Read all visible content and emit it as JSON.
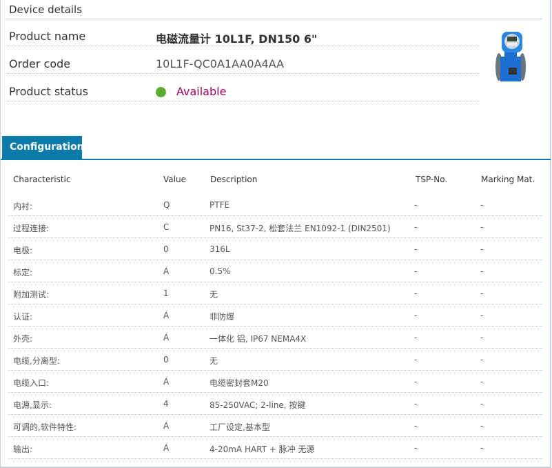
{
  "device_details": {
    "title": "Device details",
    "product_name_label": "Product name",
    "product_name": "电磁流量计 10L1F, DN150 6\"",
    "order_code_label": "Order code",
    "order_code": "10L1F-QC0A1AA0A4AA",
    "product_status_label": "Product status",
    "product_status": "Available",
    "status_color": "#5aad2f"
  },
  "configuration": {
    "tab_label": "Configuration",
    "accent_color": "#0a7aa8",
    "columns": [
      "Characteristic",
      "Value",
      "Description",
      "TSP-No.",
      "Marking Mat."
    ],
    "rows": [
      [
        "内衬:",
        "Q",
        "PTFE",
        "-",
        "-"
      ],
      [
        "过程连接:",
        "C",
        "PN16, St37-2, 松套法兰 EN1092-1 (DIN2501)",
        "-",
        "-"
      ],
      [
        "电极:",
        "0",
        "316L",
        "-",
        "-"
      ],
      [
        "标定:",
        "A",
        "0.5%",
        "-",
        "-"
      ],
      [
        "附加测试:",
        "1",
        "无",
        "-",
        "-"
      ],
      [
        "认证:",
        "A",
        "非防爆",
        "-",
        "-"
      ],
      [
        "外壳:",
        "A",
        "一体化 铝, IP67 NEMA4X",
        "-",
        "-"
      ],
      [
        "电缆,分离型:",
        "0",
        "无",
        "-",
        "-"
      ],
      [
        "电缆入口:",
        "A",
        "电缆密封套M20",
        "-",
        "-"
      ],
      [
        "电源,显示:",
        "4",
        "85-250VAC; 2-line, 按键",
        "-",
        "-"
      ],
      [
        "可调的,软件特性:",
        "A",
        "工厂设定,基本型",
        "-",
        "-"
      ],
      [
        "输出:",
        "A",
        "4-20mA HART + 脉冲 无源",
        "-",
        "-"
      ]
    ]
  }
}
